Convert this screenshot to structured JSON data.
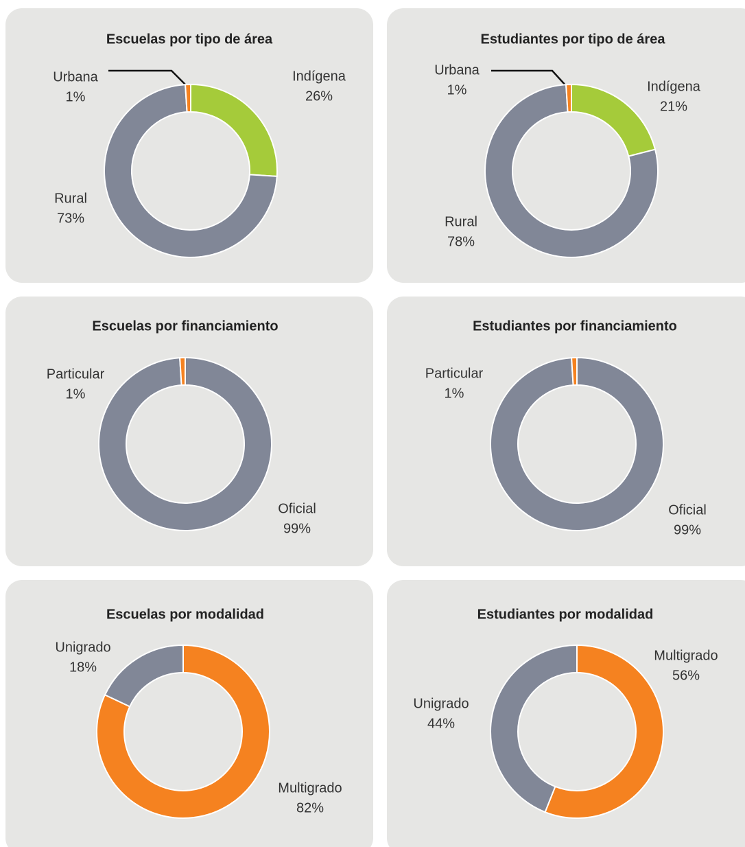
{
  "chart_data": [
    {
      "type": "pie",
      "title": "Escuelas por tipo de área",
      "categories": [
        "Indígena",
        "Rural",
        "Urbana"
      ],
      "values": [
        26,
        73,
        1
      ],
      "value_labels": [
        "26%",
        "73%",
        "1%"
      ],
      "colors": [
        "#a5cb3a",
        "#818797",
        "#f58220"
      ],
      "donut": true
    },
    {
      "type": "pie",
      "title": "Estudiantes por tipo de área",
      "categories": [
        "Indígena",
        "Rural",
        "Urbana"
      ],
      "values": [
        21,
        78,
        1
      ],
      "value_labels": [
        "21%",
        "78%",
        "1%"
      ],
      "colors": [
        "#a5cb3a",
        "#818797",
        "#f58220"
      ],
      "donut": true
    },
    {
      "type": "pie",
      "title": "Escuelas por financiamiento",
      "categories": [
        "Oficial",
        "Particular"
      ],
      "values": [
        99,
        1
      ],
      "value_labels": [
        "99%",
        "1%"
      ],
      "colors": [
        "#818797",
        "#f58220"
      ],
      "donut": true
    },
    {
      "type": "pie",
      "title": "Estudiantes por financiamiento",
      "categories": [
        "Oficial",
        "Particular"
      ],
      "values": [
        99,
        1
      ],
      "value_labels": [
        "99%",
        "1%"
      ],
      "colors": [
        "#818797",
        "#f58220"
      ],
      "donut": true
    },
    {
      "type": "pie",
      "title": "Escuelas por modalidad",
      "categories": [
        "Multigrado",
        "Unigrado"
      ],
      "values": [
        82,
        18
      ],
      "value_labels": [
        "82%",
        "18%"
      ],
      "colors": [
        "#f58220",
        "#818797"
      ],
      "donut": true
    },
    {
      "type": "pie",
      "title": "Estudiantes por modalidad",
      "categories": [
        "Multigrado",
        "Unigrado"
      ],
      "values": [
        56,
        44
      ],
      "value_labels": [
        "56%",
        "44%"
      ],
      "colors": [
        "#f58220",
        "#818797"
      ],
      "donut": true
    }
  ]
}
